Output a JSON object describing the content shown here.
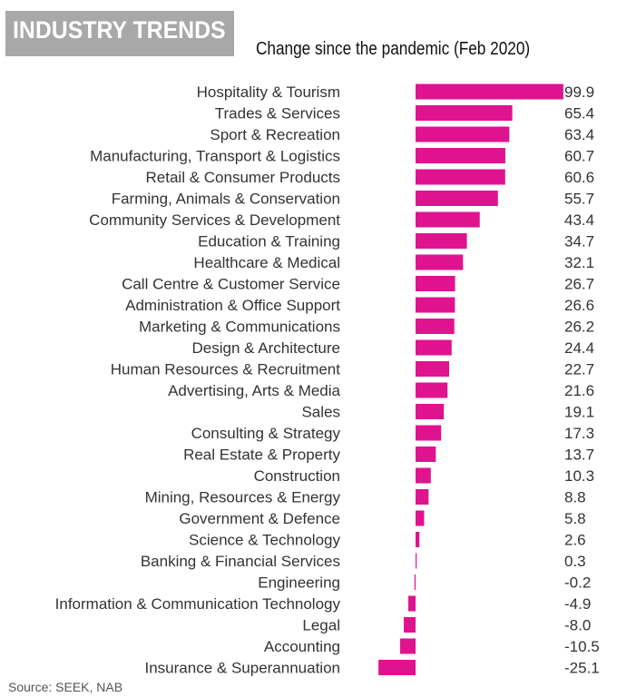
{
  "header": {
    "title": "INDUSTRY TRENDS",
    "subtitle": "Change since the pandemic (Feb 2020)"
  },
  "footer": {
    "source": "Source: SEEK, NAB"
  },
  "colors": {
    "bar": "#e0138f",
    "header_bg": "#a8a8a8",
    "label": "#333333"
  },
  "chart_data": {
    "type": "bar",
    "orientation": "horizontal",
    "title": "INDUSTRY TRENDS",
    "subtitle": "Change since the pandemic (Feb 2020)",
    "categories": [
      "Hospitality & Tourism",
      "Trades & Services",
      "Sport & Recreation",
      "Manufacturing, Transport & Logistics",
      "Retail & Consumer Products",
      "Farming, Animals & Conservation",
      "Community Services & Development",
      "Education & Training",
      "Healthcare & Medical",
      "Call Centre & Customer Service",
      "Administration & Office Support",
      "Marketing & Communications",
      "Design & Architecture",
      "Human Resources & Recruitment",
      "Advertising, Arts & Media",
      "Sales",
      "Consulting & Strategy",
      "Real Estate & Property",
      "Construction",
      "Mining, Resources & Energy",
      "Government & Defence",
      "Science & Technology",
      "Banking & Financial Services",
      "Engineering",
      "Information & Communication Technology",
      "Legal",
      "Accounting",
      "Insurance & Superannuation"
    ],
    "values": [
      99.9,
      65.4,
      63.4,
      60.7,
      60.6,
      55.7,
      43.4,
      34.7,
      32.1,
      26.7,
      26.6,
      26.2,
      24.4,
      22.7,
      21.6,
      19.1,
      17.3,
      13.7,
      10.3,
      8.8,
      5.8,
      2.6,
      0.3,
      -0.2,
      -4.9,
      -8.0,
      -10.5,
      -25.1
    ],
    "value_labels": [
      "99.9",
      "65.4",
      "63.4",
      "60.7",
      "60.6",
      "55.7",
      "43.4",
      "34.7",
      "32.1",
      "26.7",
      "26.6",
      "26.2",
      "24.4",
      "22.7",
      "21.6",
      "19.1",
      "17.3",
      "13.7",
      "10.3",
      "8.8",
      "5.8",
      "2.6",
      "0.3",
      "-0.2",
      "-4.9",
      "-8.0",
      "-10.5",
      "-25.1"
    ],
    "grid": false,
    "legend": "none"
  }
}
